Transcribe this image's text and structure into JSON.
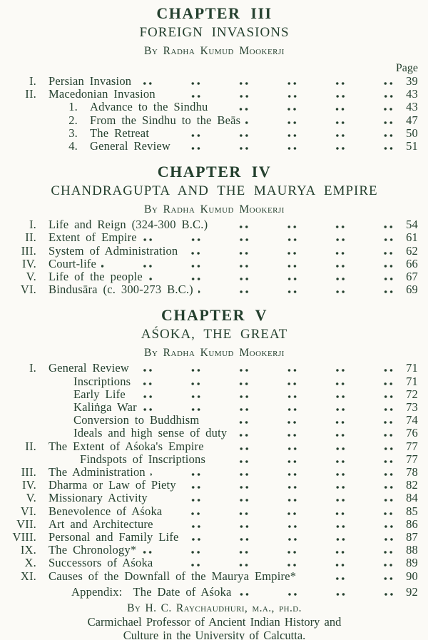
{
  "colors": {
    "ink": "#24402e",
    "paper": "#fbfaf6"
  },
  "sections": [
    {
      "chapter": "CHAPTER III",
      "title": "FOREIGN INVASIONS",
      "byline": "By Radha Kumud Mookerji",
      "page_label": "Page",
      "entries": [
        {
          "num": "I.",
          "title": "Persian Invasion",
          "page": "39",
          "level": 0
        },
        {
          "num": "II.",
          "title": "Macedonian Invasion",
          "page": "43",
          "level": 0
        },
        {
          "num": "1.",
          "title": "Advance to the Sindhu",
          "page": "43",
          "level": 1
        },
        {
          "num": "2.",
          "title": "From the Sindhu to the Beās",
          "page": "47",
          "level": 1
        },
        {
          "num": "3.",
          "title": "The Retreat",
          "page": "50",
          "level": 1
        },
        {
          "num": "4.",
          "title": "General Review",
          "page": "51",
          "level": 1
        }
      ]
    },
    {
      "chapter": "CHAPTER IV",
      "title": "CHANDRAGUPTA AND THE MAURYA EMPIRE",
      "byline": "By Radha Kumud Mookerji",
      "entries": [
        {
          "num": "I.",
          "title": "Life and Reign (324-300 B.C.)",
          "page": "54",
          "level": 0
        },
        {
          "num": "II.",
          "title": "Extent of Empire",
          "page": "61",
          "level": 0
        },
        {
          "num": "III.",
          "title": "System of Administration",
          "page": "62",
          "level": 0
        },
        {
          "num": "IV.",
          "title": "Court-life",
          "page": "66",
          "level": 0
        },
        {
          "num": "V.",
          "title": "Life of the people",
          "page": "67",
          "level": 0
        },
        {
          "num": "VI.",
          "title": "Bindusāra (c. 300-273 B.C.)",
          "page": "69",
          "level": 0
        }
      ]
    },
    {
      "chapter": "CHAPTER V",
      "title": "AŚOKA, THE GREAT",
      "byline": "By Radha Kumud Mookerji",
      "entries": [
        {
          "num": "I.",
          "title": "General Review",
          "page": "71",
          "level": 0
        },
        {
          "num": "",
          "title": "Inscriptions",
          "page": "71",
          "level": 2
        },
        {
          "num": "",
          "title": "Early Life",
          "page": "72",
          "level": 2
        },
        {
          "num": "",
          "title": "Kaliṅga War",
          "page": "73",
          "level": 2
        },
        {
          "num": "",
          "title": "Conversion to Buddhism",
          "page": "74",
          "level": 2
        },
        {
          "num": "",
          "title": "Ideals and high sense of duty",
          "page": "76",
          "level": 2
        },
        {
          "num": "II.",
          "title": "The Extent of Aśoka's Empire",
          "page": "77",
          "level": 0
        },
        {
          "num": "",
          "title": "Findspots of Inscriptions",
          "page": "77",
          "level": 3
        },
        {
          "num": "III.",
          "title": "The Administration",
          "page": "78",
          "level": 0
        },
        {
          "num": "IV.",
          "title": "Dharma or Law of Piety",
          "page": "82",
          "level": 0
        },
        {
          "num": "V.",
          "title": "Missionary Activity",
          "page": "84",
          "level": 0
        },
        {
          "num": "VI.",
          "title": "Benevolence of Aśoka",
          "page": "85",
          "level": 0
        },
        {
          "num": "VII.",
          "title": "Art and Architecture",
          "page": "86",
          "level": 0
        },
        {
          "num": "VIII.",
          "title": "Personal and Family Life",
          "page": "87",
          "level": 0
        },
        {
          "num": "IX.",
          "title": "The Chronology*",
          "page": "88",
          "level": 0
        },
        {
          "num": "X.",
          "title": "Successors of Aśoka",
          "page": "89",
          "level": 0
        },
        {
          "num": "XI.",
          "title": "Causes of the Downfall of the Maurya Empire*",
          "page": "90",
          "level": 0
        }
      ]
    }
  ],
  "appendix": {
    "label": "Appendix:",
    "title": "The Date of Aśoka",
    "page": "92"
  },
  "footer": {
    "byline": "By H. C. Raychaudhuri, m.a., ph.d.",
    "affiliation_line1": "Carmichael Professor of Ancient Indian History and",
    "affiliation_line2": "Culture in the University of Calcutta."
  }
}
